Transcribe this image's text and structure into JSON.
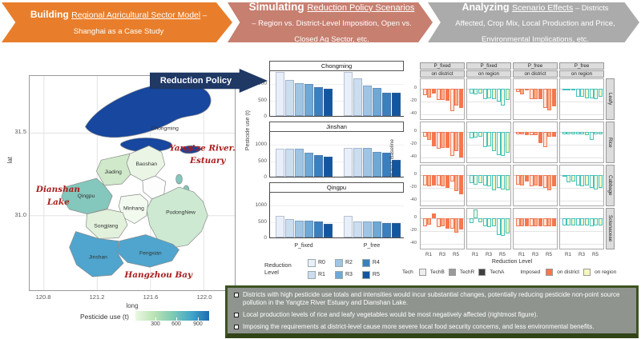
{
  "banners": [
    {
      "lead": "Building ",
      "link": "Regional Agricultural Sector Model",
      "tail": " – Shanghai as a Case Study",
      "bg": "#E87E2B"
    },
    {
      "lead": "Simulating ",
      "link": "Reduction Policy Scenarios",
      "tail": " – Region vs. District-Level Imposition, Open vs. Closed Ag Sector, etc.",
      "bg": "#C77F70"
    },
    {
      "lead": "Analyzing ",
      "link": "Scenario Effects",
      "tail": " – Districts Affected, Crop Mix, Local Production and Price, Environmental Implications, etc.",
      "bg": "#ABABAB"
    }
  ],
  "reduction_policy_arrow": {
    "label": "Reduction Policy",
    "bg": "#1F3864"
  },
  "map": {
    "xlabel": "long",
    "ylabel": "lat",
    "xticks": [
      "120.8",
      "121.2",
      "121.6",
      "122.0"
    ],
    "yticks": [
      "31.5",
      "31.0"
    ],
    "districts": [
      {
        "name": "Chongming",
        "fill": "#17479E"
      },
      {
        "name": "Baoshan",
        "fill": "#EAF5E5"
      },
      {
        "name": "Jiading",
        "fill": "#CFE9CA"
      },
      {
        "name": "Qingpu",
        "fill": "#84C7BC"
      },
      {
        "name": "Songjiang",
        "fill": "#E1F1DB"
      },
      {
        "name": "Minhang",
        "fill": "#F2FAEF"
      },
      {
        "name": "PudongNew",
        "fill": "#CDE9D2"
      },
      {
        "name": "Fengxian",
        "fill": "#C8E7C2"
      },
      {
        "name": "Jinshan",
        "fill": "#4FA5CD"
      }
    ],
    "islands": [
      {
        "fill": "#17479E"
      },
      {
        "fill": "#17479E"
      },
      {
        "fill": "#84C7BC"
      },
      {
        "fill": "#84C7BC"
      }
    ],
    "annotation_color": "#A91D1D",
    "annotations": {
      "estuary_l1": "Yangtze River.",
      "estuary_l2": "Estuary",
      "lake_l1": "Dianshan",
      "lake_l2": "Lake",
      "bay": "Hangzhou Bay"
    },
    "legend": {
      "title": "Pesticide use (t)",
      "ticks": [
        "300",
        "600",
        "900"
      ],
      "gradient": [
        "#EAF7E3",
        "#BBE4B4",
        "#7FCBB4",
        "#45A8C8",
        "#1D6CB0"
      ]
    }
  },
  "chart_data": [
    {
      "type": "bar",
      "ylabel": "Pesticide use (t)",
      "yticks": [
        1000,
        500,
        0
      ],
      "ylim": [
        0,
        1400
      ],
      "groups": [
        "P_fixed",
        "P_free"
      ],
      "levels": [
        "R0",
        "R1",
        "R2",
        "R3",
        "R4",
        "R5"
      ],
      "level_colors": [
        "#E9EFF9",
        "#CDDDF0",
        "#9FC4E4",
        "#6FA8D4",
        "#3C7FBF",
        "#1356A0"
      ],
      "legend_title": "Reduction Level",
      "facets": [
        {
          "name": "Chongming",
          "values": [
            [
              1350,
              1110,
              1000,
              985,
              890,
              825
            ],
            [
              1340,
              1160,
              945,
              850,
              700,
              715
            ]
          ]
        },
        {
          "name": "Jinshan",
          "values": [
            [
              850,
              850,
              865,
              740,
              675,
              610
            ],
            [
              880,
              880,
              890,
              765,
              730,
              520
            ]
          ]
        },
        {
          "name": "Qingpu",
          "values": [
            [
              670,
              560,
              525,
              510,
              485,
              420
            ],
            [
              655,
              495,
              480,
              480,
              445,
              430
            ]
          ]
        }
      ]
    },
    {
      "type": "bar",
      "ylabel": "% w.r.t. Baseline",
      "xlabel": "Reduction Level",
      "yticks": [
        0,
        -20,
        -40
      ],
      "ylim": [
        -50,
        15
      ],
      "xticks": [
        "R1",
        "R3",
        "R5"
      ],
      "col_headers": [
        {
          "top": "P_fixed",
          "bottom": "on district"
        },
        {
          "top": "P_fixed",
          "bottom": "on region"
        },
        {
          "top": "P_free",
          "bottom": "on district"
        },
        {
          "top": "P_free",
          "bottom": "on region"
        }
      ],
      "row_labels": [
        "Leafy",
        "Rice",
        "Cabbage",
        "Solanaceae"
      ],
      "district_shades": {
        "fills": [
          "#FEE7DC",
          "#FBAE86",
          "#F8764B"
        ],
        "stroke": "#EF7853"
      },
      "region_shades": {
        "fills": [
          "#FFFFF4",
          "#FCFCDC",
          "#F7F7BE"
        ],
        "stroke": "#45C1BD"
      },
      "tech_legend": {
        "title": "Tech",
        "entries": [
          {
            "label": "TechB",
            "color": "#EDEDED"
          },
          {
            "label": "TechR",
            "color": "#9A9A9A"
          },
          {
            "label": "TechA",
            "color": "#3F3F3F"
          }
        ]
      },
      "imposed_legend": {
        "title": "Imposed",
        "entries": [
          {
            "label": "on district",
            "color": "#F8764B"
          },
          {
            "label": "on region",
            "color": "#F7F7BE"
          }
        ]
      },
      "panels": [
        [
          [
            -10,
            -14,
            -8,
            -18,
            -18,
            -19,
            -35,
            -26,
            -30
          ],
          [
            -8,
            -9,
            -8,
            -16,
            -15,
            -16,
            -20,
            -26,
            -18
          ],
          [
            -5,
            -9,
            -2,
            -16,
            -16,
            -16,
            -30,
            -34,
            -28
          ],
          [
            -2,
            -1,
            -1,
            -13,
            -13,
            -15,
            -15,
            -16,
            -12
          ]
        ],
        [
          [
            -8,
            -12,
            -22,
            -26,
            -25,
            -25,
            -38,
            -30,
            -40
          ],
          [
            -10,
            -9,
            -8,
            -24,
            -23,
            -30,
            -36,
            -38,
            -32
          ],
          [
            -4,
            -4,
            -5,
            -5,
            -5,
            -18,
            -24,
            -8,
            -8
          ],
          [
            -4,
            -4,
            -4,
            -4,
            -4,
            -5,
            -13,
            -4,
            -4
          ]
        ],
        [
          [
            -16,
            -18,
            -16,
            -16,
            -18,
            -20,
            -10,
            -25,
            -30
          ],
          [
            -13,
            -15,
            -13,
            -16,
            -18,
            -24,
            -20,
            -22,
            -24
          ],
          [
            -15,
            -16,
            -10,
            -18,
            -16,
            -18,
            -20,
            -24,
            -18
          ],
          [
            -3,
            -11,
            -10,
            -16,
            -18,
            -16,
            -20,
            -22,
            -20
          ]
        ],
        [
          [
            -12,
            -10,
            8,
            -14,
            -12,
            -16,
            -16,
            -22,
            -18
          ],
          [
            -8,
            14,
            -6,
            -12,
            -14,
            -12,
            -26,
            -28,
            -24
          ],
          [
            -12,
            -12,
            -12,
            -13,
            -13,
            -13,
            -13,
            -13,
            -13
          ],
          [
            -11,
            -11,
            -11,
            -11,
            -11,
            -11,
            -13,
            -11,
            -11
          ]
        ]
      ]
    }
  ],
  "findings": {
    "bg": "#8F948F",
    "items": [
      "Districts with high pesticide use totals and intensities would incur substantial changes, potentially reducing pesticide non-point source pollution in the Yangtze River Estuary and Dianshan Lake.",
      "Local production levels of rice and leafy vegetables would be most negatively affected (rightmost figure).",
      "Imposing the requirements at district-level cause more severe local food security concerns, and less environmental benefits."
    ]
  }
}
